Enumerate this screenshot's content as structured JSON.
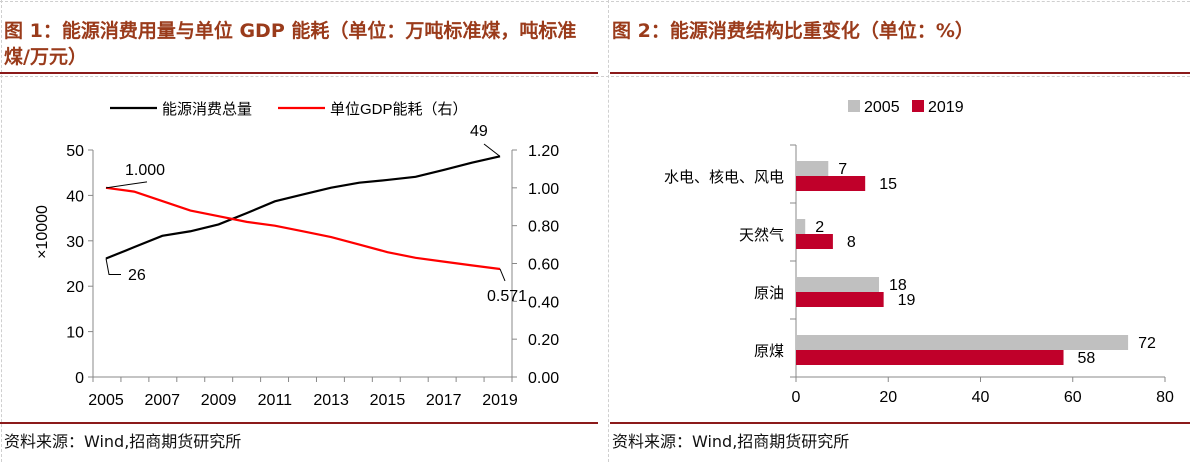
{
  "left": {
    "title": "图 1：能源消费用量与单位 GDP 能耗（单位：万吨标准煤，吨标准煤/万元）",
    "source": "资料来源：Wind,招商期货研究所"
  },
  "right": {
    "title": "图 2：能源消费结构比重变化（单位：%）",
    "source": "资料来源：Wind,招商期货研究所"
  },
  "chart_data": [
    {
      "type": "line",
      "x": [
        2005,
        2006,
        2007,
        2008,
        2009,
        2010,
        2011,
        2012,
        2013,
        2014,
        2015,
        2016,
        2017,
        2018,
        2019
      ],
      "x_tick_labels": [
        "2005",
        "2007",
        "2009",
        "2011",
        "2013",
        "2015",
        "2017",
        "2019"
      ],
      "series": [
        {
          "name": "能源消费总量",
          "axis": "left",
          "color": "#000000",
          "values": [
            26.1,
            28.6,
            31.1,
            32.1,
            33.6,
            36.1,
            38.7,
            40.2,
            41.7,
            42.8,
            43.4,
            44.1,
            45.6,
            47.2,
            48.6
          ]
        },
        {
          "name": "单位GDP能耗（右）",
          "axis": "right",
          "color": "#ff0000",
          "values": [
            1.0,
            0.98,
            0.93,
            0.88,
            0.85,
            0.82,
            0.8,
            0.77,
            0.74,
            0.7,
            0.66,
            0.63,
            0.61,
            0.59,
            0.571
          ]
        }
      ],
      "annotations": [
        "1.000",
        "26",
        "49",
        "0.571"
      ],
      "ylabel": "×10000",
      "ylim": [
        0,
        50
      ],
      "y_tick_labels": [
        "0",
        "10",
        "20",
        "30",
        "40",
        "50"
      ],
      "y2lim": [
        0,
        1.2
      ],
      "y2_tick_labels": [
        "0.00",
        "0.20",
        "0.40",
        "0.60",
        "0.80",
        "1.00",
        "1.20"
      ],
      "legend": "top",
      "grid": false
    },
    {
      "type": "bar",
      "orientation": "horizontal",
      "categories": [
        "水电、核电、风电",
        "天然气",
        "原油",
        "原煤"
      ],
      "series": [
        {
          "name": "2005",
          "color": "#c0c0c0",
          "values": [
            7,
            2,
            18,
            72
          ]
        },
        {
          "name": "2019",
          "color": "#c0002a",
          "values": [
            15,
            8,
            19,
            58
          ]
        }
      ],
      "xlim": [
        0,
        80
      ],
      "x_tick_labels": [
        "0",
        "20",
        "40",
        "60",
        "80"
      ],
      "legend": "top",
      "grid": false
    }
  ]
}
